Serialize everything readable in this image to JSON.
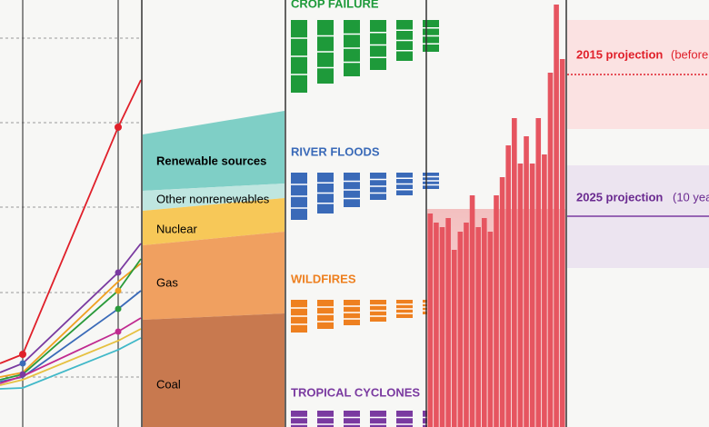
{
  "panels": {
    "energy": {
      "labels": [
        "Renewable sources",
        "Other nonrenewables",
        "Nuclear",
        "Gas",
        "Coal"
      ]
    },
    "hazards": {
      "titles": [
        "CROP FAILURE",
        "RIVER FLOODS",
        "WILDFIRES",
        "TROPICAL CYCLONES"
      ]
    },
    "histogram": {
      "values": [
        235,
        225,
        220,
        230,
        195,
        215,
        225,
        255,
        220,
        230,
        215,
        255,
        275,
        310,
        340,
        290,
        320,
        290,
        340,
        300,
        390,
        465,
        405
      ]
    },
    "projections": {
      "labels": [
        "2015 projection",
        "(before",
        "2025 projection",
        "(10 yea"
      ]
    }
  }
}
